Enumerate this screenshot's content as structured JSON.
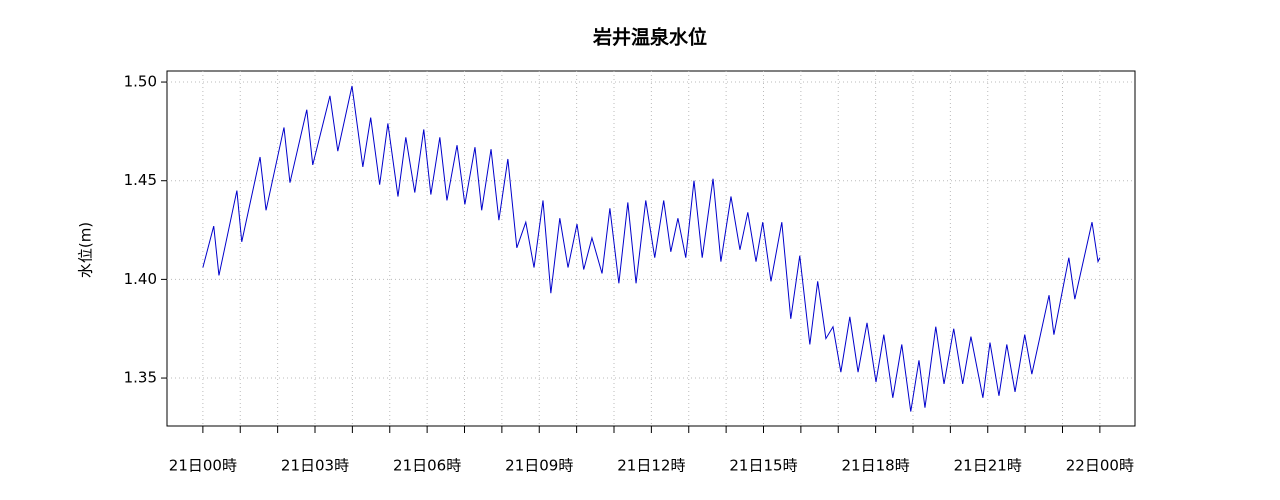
{
  "chart_data": {
    "type": "line",
    "title": "岩井温泉水位",
    "y_label": "水位(m)",
    "xlim": [
      -0.96,
      24.94
    ],
    "ylim": [
      1.3257,
      1.5056
    ],
    "xticks": [
      {
        "value": 0,
        "label": "21日00時"
      },
      {
        "value": 3,
        "label": "21日03時"
      },
      {
        "value": 6,
        "label": "21日06時"
      },
      {
        "value": 9,
        "label": "21日09時"
      },
      {
        "value": 12,
        "label": "21日12時"
      },
      {
        "value": 15,
        "label": "21日15時"
      },
      {
        "value": 18,
        "label": "21日18時"
      },
      {
        "value": 21,
        "label": "21日21時"
      },
      {
        "value": 24,
        "label": "22日00時"
      }
    ],
    "xminorticks": [
      1,
      2,
      4,
      5,
      7,
      8,
      10,
      11,
      13,
      14,
      16,
      17,
      19,
      20,
      22,
      23
    ],
    "yticks": [
      1.35,
      {
        "value": 1.4,
        "label": "1.40"
      },
      1.45,
      {
        "value": 1.5,
        "label": "1.50"
      }
    ],
    "grid": true,
    "series": [
      {
        "color": "#0000cc",
        "x": [
          0,
          0.29,
          0.43,
          0.91,
          1.04,
          1.53,
          1.69,
          2.17,
          2.33,
          2.78,
          2.94,
          3.4,
          3.61,
          3.99,
          4.28,
          4.49,
          4.73,
          4.95,
          5.22,
          5.43,
          5.67,
          5.91,
          6.1,
          6.34,
          6.53,
          6.8,
          7.01,
          7.28,
          7.46,
          7.71,
          7.92,
          8.16,
          8.4,
          8.64,
          8.86,
          9.1,
          9.31,
          9.55,
          9.77,
          10.01,
          10.19,
          10.41,
          10.68,
          10.89,
          11.13,
          11.37,
          11.59,
          11.85,
          12.09,
          12.33,
          12.52,
          12.71,
          12.92,
          13.14,
          13.36,
          13.65,
          13.86,
          14.13,
          14.37,
          14.58,
          14.8,
          14.98,
          15.2,
          15.49,
          15.73,
          15.97,
          16.24,
          16.45,
          16.67,
          16.86,
          17.07,
          17.31,
          17.53,
          17.77,
          18.01,
          18.22,
          18.46,
          18.7,
          18.94,
          19.16,
          19.32,
          19.61,
          19.83,
          20.09,
          20.33,
          20.55,
          20.87,
          21.06,
          21.3,
          21.51,
          21.73,
          21.99,
          22.18,
          22.64,
          22.77,
          23.17,
          23.33,
          23.79,
          23.95,
          24.0
        ],
        "values": [
          1.406,
          1.427,
          1.402,
          1.445,
          1.419,
          1.462,
          1.435,
          1.477,
          1.449,
          1.486,
          1.458,
          1.493,
          1.465,
          1.498,
          1.457,
          1.482,
          1.448,
          1.479,
          1.442,
          1.472,
          1.444,
          1.476,
          1.443,
          1.472,
          1.44,
          1.468,
          1.438,
          1.467,
          1.435,
          1.466,
          1.43,
          1.461,
          1.416,
          1.429,
          1.406,
          1.44,
          1.393,
          1.431,
          1.406,
          1.428,
          1.405,
          1.421,
          1.403,
          1.436,
          1.398,
          1.439,
          1.398,
          1.44,
          1.411,
          1.44,
          1.414,
          1.431,
          1.411,
          1.45,
          1.411,
          1.451,
          1.409,
          1.442,
          1.415,
          1.434,
          1.409,
          1.429,
          1.399,
          1.429,
          1.38,
          1.412,
          1.367,
          1.399,
          1.37,
          1.376,
          1.353,
          1.381,
          1.353,
          1.378,
          1.348,
          1.372,
          1.34,
          1.367,
          1.333,
          1.359,
          1.335,
          1.376,
          1.347,
          1.375,
          1.347,
          1.371,
          1.34,
          1.368,
          1.341,
          1.367,
          1.343,
          1.372,
          1.352,
          1.392,
          1.372,
          1.411,
          1.39,
          1.429,
          1.409,
          1.411
        ]
      }
    ]
  }
}
